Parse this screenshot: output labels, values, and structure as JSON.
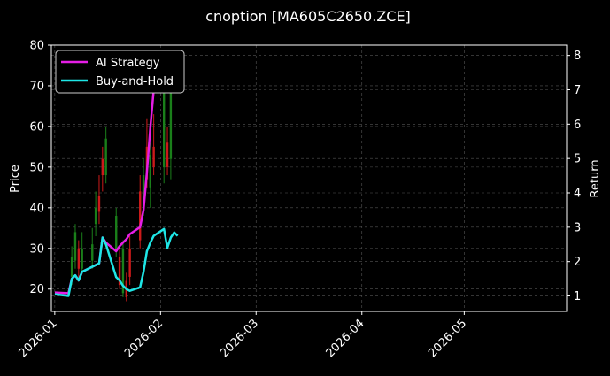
{
  "chart_data": {
    "type": "line",
    "title": "cnoption [MA605C2650.ZCE]",
    "ylabel": "Price",
    "y2label": "Return",
    "theme": {
      "background": "#000000",
      "text": "#ffffff",
      "grid": "#555555",
      "up": "#1a7f1a",
      "down": "#cc1a1a"
    },
    "xlim": [
      "2025-12-31",
      "2026-05-31"
    ],
    "ylim": [
      14.5,
      80
    ],
    "y2lim": [
      0.55,
      8.3
    ],
    "x_ticks": [
      "2026-01",
      "2026-02",
      "2026-03",
      "2026-04",
      "2026-05"
    ],
    "y_ticks": [
      20,
      30,
      40,
      50,
      60,
      70,
      80
    ],
    "y2_ticks": [
      1,
      2,
      3,
      4,
      5,
      6,
      7,
      8
    ],
    "grid": true,
    "legend": {
      "placement": "top-left"
    },
    "series": [
      {
        "name": "AI Strategy",
        "axis": "right",
        "color": "#e61ee6",
        "points": [
          [
            "2026-01-01",
            1.1
          ],
          [
            "2026-01-05",
            1.08
          ],
          [
            "2026-01-06",
            1.5
          ],
          [
            "2026-01-07",
            1.6
          ],
          [
            "2026-01-08",
            1.45
          ],
          [
            "2026-01-09",
            1.7
          ],
          [
            "2026-01-12",
            1.85
          ],
          [
            "2026-01-13",
            1.9
          ],
          [
            "2026-01-14",
            1.95
          ],
          [
            "2026-01-15",
            2.7
          ],
          [
            "2026-01-16",
            2.55
          ],
          [
            "2026-01-19",
            2.3
          ],
          [
            "2026-01-20",
            2.45
          ],
          [
            "2026-01-21",
            2.55
          ],
          [
            "2026-01-22",
            2.65
          ],
          [
            "2026-01-23",
            2.8
          ],
          [
            "2026-01-26",
            3.0
          ],
          [
            "2026-01-27",
            3.5
          ],
          [
            "2026-01-28",
            4.6
          ],
          [
            "2026-01-29",
            5.9
          ],
          [
            "2026-01-30",
            7.0
          ],
          [
            "2026-02-02",
            7.9
          ]
        ]
      },
      {
        "name": "Buy-and-Hold",
        "axis": "right",
        "color": "#1ee6e6",
        "points": [
          [
            "2026-01-01",
            1.05
          ],
          [
            "2026-01-05",
            1.0
          ],
          [
            "2026-01-06",
            1.5
          ],
          [
            "2026-01-07",
            1.6
          ],
          [
            "2026-01-08",
            1.45
          ],
          [
            "2026-01-09",
            1.7
          ],
          [
            "2026-01-12",
            1.85
          ],
          [
            "2026-01-13",
            1.9
          ],
          [
            "2026-01-14",
            1.95
          ],
          [
            "2026-01-15",
            2.7
          ],
          [
            "2026-01-16",
            2.5
          ],
          [
            "2026-01-19",
            1.55
          ],
          [
            "2026-01-20",
            1.45
          ],
          [
            "2026-01-21",
            1.3
          ],
          [
            "2026-01-22",
            1.2
          ],
          [
            "2026-01-23",
            1.15
          ],
          [
            "2026-01-26",
            1.25
          ],
          [
            "2026-01-27",
            1.7
          ],
          [
            "2026-01-28",
            2.3
          ],
          [
            "2026-01-29",
            2.55
          ],
          [
            "2026-01-30",
            2.75
          ],
          [
            "2026-02-02",
            2.95
          ],
          [
            "2026-02-03",
            2.4
          ],
          [
            "2026-02-04",
            2.7
          ],
          [
            "2026-02-05",
            2.85
          ],
          [
            "2026-02-06",
            2.75
          ]
        ]
      }
    ],
    "candles": [
      {
        "date": "2026-01-06",
        "open": 23,
        "high": 30.5,
        "low": 21,
        "close": 28
      },
      {
        "date": "2026-01-07",
        "open": 27,
        "high": 36,
        "low": 25,
        "close": 34
      },
      {
        "date": "2026-01-08",
        "open": 30,
        "high": 32,
        "low": 22,
        "close": 25
      },
      {
        "date": "2026-01-09",
        "open": 25,
        "high": 34,
        "low": 24,
        "close": 30
      },
      {
        "date": "2026-01-12",
        "open": 27,
        "high": 35,
        "low": 25,
        "close": 31
      },
      {
        "date": "2026-01-13",
        "open": 36,
        "high": 44,
        "low": 33,
        "close": 40
      },
      {
        "date": "2026-01-14",
        "open": 43,
        "high": 48,
        "low": 36,
        "close": 39
      },
      {
        "date": "2026-01-15",
        "open": 52,
        "high": 55,
        "low": 44,
        "close": 48
      },
      {
        "date": "2026-01-16",
        "open": 48,
        "high": 60,
        "low": 46,
        "close": 57
      },
      {
        "date": "2026-01-19",
        "open": 30,
        "high": 40,
        "low": 28,
        "close": 38
      },
      {
        "date": "2026-01-20",
        "open": 28,
        "high": 30,
        "low": 20,
        "close": 21
      },
      {
        "date": "2026-01-21",
        "open": 19,
        "high": 32,
        "low": 18,
        "close": 30
      },
      {
        "date": "2026-01-22",
        "open": 22,
        "high": 24,
        "low": 17,
        "close": 18
      },
      {
        "date": "2026-01-23",
        "open": 30,
        "high": 33,
        "low": 21,
        "close": 23
      },
      {
        "date": "2026-01-26",
        "open": 44,
        "high": 48,
        "low": 30,
        "close": 32
      },
      {
        "date": "2026-01-27",
        "open": 40,
        "high": 52,
        "low": 38,
        "close": 48
      },
      {
        "date": "2026-01-28",
        "open": 55,
        "high": 62,
        "low": 45,
        "close": 47
      },
      {
        "date": "2026-01-29",
        "open": 45,
        "high": 56,
        "low": 40,
        "close": 53
      },
      {
        "date": "2026-01-30",
        "open": 55,
        "high": 63,
        "low": 48,
        "close": 50
      },
      {
        "date": "2026-02-02",
        "open": 50,
        "high": 78,
        "low": 46,
        "close": 75
      },
      {
        "date": "2026-02-03",
        "open": 56,
        "high": 60,
        "low": 48,
        "close": 50
      },
      {
        "date": "2026-02-04",
        "open": 52,
        "high": 73,
        "low": 47,
        "close": 70
      }
    ]
  }
}
